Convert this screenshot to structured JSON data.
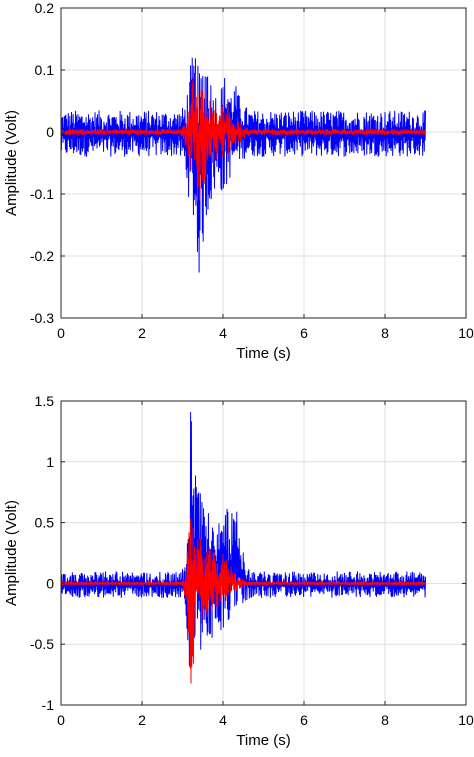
{
  "colors": {
    "series_1": "#0000ff",
    "series_2": "#ff0000",
    "grid": "#dfdfdf",
    "axes": "#262626"
  },
  "chart_data": [
    {
      "type": "line",
      "title": "",
      "xlabel": "Time (s)",
      "ylabel": "Amplitude (Volt)",
      "xlim": [
        0,
        10
      ],
      "ylim": [
        -0.3,
        0.2
      ],
      "grid": true,
      "legend": "none",
      "x_ticks": [
        "0",
        "2",
        "4",
        "6",
        "8",
        "10"
      ],
      "y_ticks": [
        "0.2",
        "0.1",
        "0",
        "-0.1",
        "-0.2",
        "-0.3"
      ],
      "x_tick_values": [
        0,
        2,
        4,
        6,
        8,
        10
      ],
      "y_tick_values": [
        0.2,
        0.1,
        0,
        -0.1,
        -0.2,
        -0.3
      ],
      "series": [
        {
          "color": "#0000ff",
          "x": [
            0,
            1,
            2,
            2.9,
            3.0,
            3.1,
            3.2,
            3.3,
            3.4,
            3.5,
            3.6,
            3.7,
            3.8,
            3.9,
            4.0,
            4.1,
            4.2,
            4.3,
            4.4,
            4.5,
            4.6,
            4.7,
            5.0,
            6,
            7,
            8,
            9.0
          ],
          "upper": [
            0.035,
            0.035,
            0.035,
            0.035,
            0.04,
            0.06,
            0.11,
            0.14,
            0.1,
            0.13,
            0.14,
            0.09,
            0.07,
            0.06,
            0.09,
            0.1,
            0.07,
            0.08,
            0.06,
            0.045,
            0.04,
            0.035,
            0.035,
            0.035,
            0.035,
            0.035,
            0.035
          ],
          "lower": [
            -0.04,
            -0.04,
            -0.04,
            -0.04,
            -0.05,
            -0.08,
            -0.13,
            -0.16,
            -0.24,
            -0.19,
            -0.14,
            -0.12,
            -0.1,
            -0.08,
            -0.11,
            -0.09,
            -0.07,
            -0.06,
            -0.05,
            -0.045,
            -0.04,
            -0.04,
            -0.04,
            -0.04,
            -0.04,
            -0.04,
            -0.04
          ]
        },
        {
          "color": "#ff0000",
          "x": [
            0,
            1,
            2,
            2.9,
            3.0,
            3.1,
            3.2,
            3.3,
            3.4,
            3.5,
            3.6,
            3.7,
            3.8,
            3.9,
            4.0,
            4.1,
            4.2,
            4.3,
            4.4,
            4.5,
            4.6,
            4.7,
            5.0,
            6,
            7,
            8,
            9.0
          ],
          "upper": [
            0.005,
            0.005,
            0.005,
            0.005,
            0.01,
            0.03,
            0.06,
            0.11,
            0.09,
            0.09,
            0.08,
            0.06,
            0.04,
            0.04,
            0.06,
            0.05,
            0.03,
            0.03,
            0.02,
            0.01,
            0.008,
            0.005,
            0.005,
            0.005,
            0.005,
            0.005,
            0.005
          ],
          "lower": [
            -0.005,
            -0.005,
            -0.005,
            -0.005,
            -0.01,
            -0.03,
            -0.06,
            -0.09,
            -0.12,
            -0.09,
            -0.08,
            -0.06,
            -0.05,
            -0.04,
            -0.05,
            -0.04,
            -0.03,
            -0.03,
            -0.02,
            -0.01,
            -0.008,
            -0.005,
            -0.005,
            -0.005,
            -0.005,
            -0.005,
            -0.005
          ]
        }
      ]
    },
    {
      "type": "line",
      "title": "",
      "xlabel": "Time (s)",
      "ylabel": "Amplitude (Volt)",
      "xlim": [
        0,
        10
      ],
      "ylim": [
        -1,
        1.5
      ],
      "grid": true,
      "legend": "none",
      "x_ticks": [
        "0",
        "2",
        "4",
        "6",
        "8",
        "10"
      ],
      "y_ticks": [
        "1.5",
        "1",
        "0.5",
        "0",
        "-0.5",
        "-1"
      ],
      "x_tick_values": [
        0,
        2,
        4,
        6,
        8,
        10
      ],
      "y_tick_values": [
        1.5,
        1,
        0.5,
        0,
        -0.5,
        -1
      ],
      "series": [
        {
          "color": "#0000ff",
          "x": [
            0,
            1,
            2,
            2.9,
            3.0,
            3.1,
            3.2,
            3.3,
            3.4,
            3.5,
            3.6,
            3.7,
            3.8,
            3.9,
            4.0,
            4.1,
            4.2,
            4.3,
            4.4,
            4.5,
            4.6,
            4.7,
            5.0,
            6,
            7,
            8,
            9.0
          ],
          "upper": [
            0.1,
            0.1,
            0.1,
            0.1,
            0.12,
            0.3,
            1.43,
            1.1,
            0.85,
            0.8,
            0.65,
            0.55,
            0.6,
            0.5,
            0.55,
            0.65,
            0.55,
            0.7,
            0.45,
            0.3,
            0.15,
            0.1,
            0.1,
            0.1,
            0.1,
            0.1,
            0.1
          ],
          "lower": [
            -0.12,
            -0.12,
            -0.12,
            -0.12,
            -0.15,
            -0.4,
            -0.85,
            -0.87,
            -0.5,
            -0.6,
            -0.45,
            -0.55,
            -0.45,
            -0.4,
            -0.45,
            -0.35,
            -0.3,
            -0.25,
            -0.2,
            -0.18,
            -0.14,
            -0.12,
            -0.12,
            -0.12,
            -0.12,
            -0.12,
            -0.12
          ]
        },
        {
          "color": "#ff0000",
          "x": [
            0,
            1,
            2,
            2.9,
            3.0,
            3.1,
            3.2,
            3.3,
            3.4,
            3.5,
            3.6,
            3.7,
            3.8,
            3.9,
            4.0,
            4.1,
            4.2,
            4.3,
            4.4,
            4.5,
            4.6,
            4.7,
            5.0,
            6,
            7,
            8,
            9.0
          ],
          "upper": [
            0.01,
            0.01,
            0.01,
            0.01,
            0.02,
            0.15,
            0.72,
            0.55,
            0.4,
            0.35,
            0.3,
            0.3,
            0.25,
            0.2,
            0.25,
            0.2,
            0.15,
            0.1,
            0.05,
            0.03,
            0.02,
            0.01,
            0.01,
            0.01,
            0.01,
            0.01,
            0.01
          ],
          "lower": [
            -0.01,
            -0.01,
            -0.01,
            -0.01,
            -0.02,
            -0.2,
            -0.85,
            -0.6,
            -0.35,
            -0.4,
            -0.3,
            -0.25,
            -0.2,
            -0.2,
            -0.2,
            -0.15,
            -0.1,
            -0.08,
            -0.05,
            -0.03,
            -0.02,
            -0.01,
            -0.01,
            -0.01,
            -0.01,
            -0.01,
            -0.01
          ]
        }
      ]
    }
  ]
}
